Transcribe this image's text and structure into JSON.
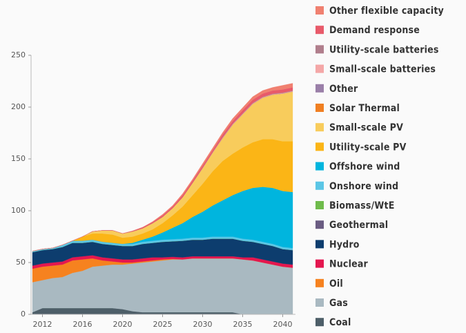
{
  "chart_data": {
    "type": "stacked_area",
    "categories": [
      null,
      "2012",
      null,
      null,
      null,
      "2016",
      null,
      null,
      null,
      "2020",
      null,
      null,
      null,
      "2025",
      null,
      null,
      null,
      "2030",
      null,
      null,
      null,
      "2035",
      null,
      null,
      null,
      "2040",
      null
    ],
    "ylim": [
      0,
      250
    ],
    "yticks": [
      0,
      50,
      100,
      150,
      200,
      250
    ],
    "legend": "right",
    "series": [
      {
        "name": "Coal",
        "color": "#4d5e68",
        "values": [
          2,
          6,
          6,
          6,
          6,
          6,
          6,
          6,
          6,
          5,
          3,
          2,
          2,
          2,
          2,
          2,
          2,
          2,
          2,
          2,
          2,
          0,
          0,
          0,
          0,
          0,
          0
        ]
      },
      {
        "name": "Gas",
        "color": "#a9b9c1",
        "values": [
          29,
          27,
          29,
          30,
          34,
          36,
          40,
          41,
          42,
          43,
          46,
          48,
          49,
          50,
          51,
          51,
          52,
          52,
          52,
          52,
          52,
          53,
          52,
          50,
          48,
          46,
          45
        ]
      },
      {
        "name": "Oil",
        "color": "#f6821f",
        "values": [
          13,
          13,
          12,
          12,
          12,
          11,
          8,
          5,
          3,
          2,
          1,
          1,
          1,
          1,
          0.5,
          0,
          0,
          0,
          0,
          0,
          0,
          0,
          0,
          0,
          0,
          0,
          0
        ]
      },
      {
        "name": "Nuclear",
        "color": "#e4174f",
        "values": [
          3,
          3,
          3,
          3,
          3,
          3,
          3,
          3,
          3,
          3,
          3,
          3,
          3,
          2,
          2,
          2,
          2,
          2,
          2,
          2,
          2,
          2,
          3,
          3,
          3,
          3,
          3
        ]
      },
      {
        "name": "Hydro",
        "color": "#0d3d6e",
        "values": [
          13,
          13,
          13,
          14,
          14,
          13,
          13,
          13,
          13,
          13,
          13,
          14,
          14,
          15,
          15,
          16,
          16,
          16,
          17,
          17,
          17,
          16,
          15,
          15,
          15,
          14,
          14
        ]
      },
      {
        "name": "Geothermal",
        "color": "#6a5c82",
        "values": [
          0,
          0,
          0,
          0,
          0,
          0,
          0,
          0,
          0,
          0,
          0,
          0,
          0,
          0,
          0,
          0,
          0,
          0,
          0,
          0,
          0,
          0,
          0,
          0,
          0,
          0,
          0
        ]
      },
      {
        "name": "Biomass/WtE",
        "color": "#6fbb4b",
        "values": [
          0,
          0,
          0,
          0,
          0,
          0,
          0,
          0,
          0,
          0,
          0,
          0,
          0,
          0,
          0,
          0,
          0,
          0,
          0,
          0,
          0,
          0,
          0,
          0,
          0,
          0,
          0
        ]
      },
      {
        "name": "Onshore wind",
        "color": "#5bc6e6",
        "values": [
          1,
          1,
          1,
          2,
          2,
          2,
          2,
          2,
          2,
          2,
          2,
          2,
          2,
          2,
          2,
          2,
          2,
          2,
          2,
          2,
          2,
          2,
          2,
          2,
          2,
          2,
          2
        ]
      },
      {
        "name": "Offshore wind",
        "color": "#00b5de",
        "values": [
          0,
          0,
          0,
          0,
          0,
          0,
          0,
          0,
          0,
          0,
          1,
          2,
          4,
          7,
          11,
          15,
          20,
          25,
          30,
          35,
          40,
          46,
          50,
          53,
          54,
          54,
          54
        ]
      },
      {
        "name": "Utility-scale PV",
        "color": "#fbb516",
        "values": [
          0,
          0,
          0,
          0,
          0,
          4,
          6,
          8,
          8,
          6,
          6,
          6,
          7,
          9,
          12,
          16,
          21,
          27,
          33,
          38,
          40,
          42,
          44,
          46,
          47,
          48,
          49
        ]
      },
      {
        "name": "Small-scale PV",
        "color": "#f8cc5c",
        "values": [
          0,
          0,
          0,
          0,
          0,
          0,
          2,
          3,
          4,
          4,
          5,
          5,
          6,
          6,
          7,
          9,
          12,
          15,
          18,
          22,
          28,
          32,
          37,
          40,
          43,
          46,
          48
        ]
      },
      {
        "name": "Solar Thermal",
        "color": "#f07f22",
        "values": [
          0,
          0,
          0,
          0,
          0,
          0,
          0,
          0,
          0,
          0,
          0,
          0,
          0,
          0,
          0,
          0,
          0,
          0,
          0,
          0,
          0,
          0,
          0,
          0,
          0,
          0,
          0
        ]
      },
      {
        "name": "Other",
        "color": "#9a7fa8",
        "values": [
          0,
          0,
          0,
          0,
          0,
          0,
          0,
          0,
          0,
          0,
          0,
          0,
          0,
          0,
          0,
          0,
          0,
          0,
          0,
          0,
          0,
          0,
          0,
          0,
          0,
          0,
          0
        ]
      },
      {
        "name": "Small-scale batteries",
        "color": "#f4a7a7",
        "values": [
          0,
          0,
          0,
          0,
          0,
          0,
          0,
          0,
          0,
          0,
          0,
          0,
          0,
          0,
          0,
          0,
          0,
          0.5,
          0.5,
          0.5,
          0.5,
          0.5,
          0.5,
          0.5,
          0.5,
          0.5,
          0.5
        ]
      },
      {
        "name": "Utility-scale batteries",
        "color": "#b07e8c",
        "values": [
          0,
          0,
          0,
          0,
          0,
          0,
          0,
          0,
          0,
          0,
          0,
          0,
          0,
          0,
          0,
          0,
          0,
          0,
          0,
          0.5,
          0.5,
          0.5,
          0.5,
          0.5,
          0.5,
          0.5,
          0.5
        ]
      },
      {
        "name": "Demand response",
        "color": "#e85a6a",
        "values": [
          0,
          0,
          0,
          0,
          0,
          0,
          0,
          0,
          0,
          0,
          0.5,
          1,
          1,
          1.5,
          1.5,
          2,
          2,
          2,
          2,
          2.5,
          2.5,
          3,
          3,
          3,
          3,
          3,
          3
        ]
      },
      {
        "name": "Other flexible capacity",
        "color": "#f08070",
        "values": [
          0,
          0,
          0,
          0,
          0,
          0,
          0,
          0,
          0,
          0,
          0,
          0,
          0.5,
          1,
          1,
          1.5,
          1.5,
          2,
          2,
          2,
          2.5,
          2.5,
          3,
          3,
          3,
          4,
          4
        ]
      }
    ]
  }
}
